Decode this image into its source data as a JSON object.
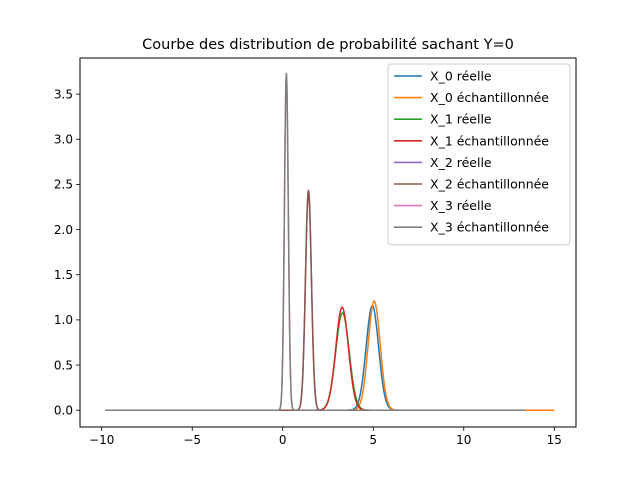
{
  "chart_data": {
    "type": "line",
    "title": "Courbe des distribution de probabilité sachant Y=0",
    "xlabel": "",
    "ylabel": "",
    "xlim": [
      -11.2,
      16.2
    ],
    "ylim": [
      -0.186,
      3.9
    ],
    "xticks": [
      -10,
      -5,
      0,
      5,
      10,
      15
    ],
    "xtick_labels": [
      "−10",
      "−5",
      "0",
      "5",
      "10",
      "15"
    ],
    "yticks": [
      0.0,
      0.5,
      1.0,
      1.5,
      2.0,
      2.5,
      3.0,
      3.5
    ],
    "ytick_labels": [
      "0.0",
      "0.5",
      "1.0",
      "1.5",
      "2.0",
      "2.5",
      "3.0",
      "3.5"
    ],
    "grid": false,
    "legend_position": "top-right",
    "series": [
      {
        "name": "X_0 réelle",
        "color": "#1f77b4",
        "kind": "gaussian",
        "mean": 4.95,
        "sd": 0.345,
        "x_range": [
          -8.6,
          13.4
        ]
      },
      {
        "name": "X_0 échantillonnée",
        "color": "#ff7f0e",
        "kind": "gaussian",
        "mean": 5.05,
        "sd": 0.33,
        "x_range": [
          -9.8,
          15.0
        ]
      },
      {
        "name": "X_1 réelle",
        "color": "#2ca02c",
        "kind": "gaussian",
        "mean": 3.3,
        "sd": 0.37,
        "x_range": [
          -8.6,
          13.4
        ]
      },
      {
        "name": "X_1 échantillonnée",
        "color": "#d62728",
        "kind": "gaussian",
        "mean": 3.28,
        "sd": 0.35,
        "x_range": [
          -9.8,
          13.4
        ]
      },
      {
        "name": "X_2 réelle",
        "color": "#9467bd",
        "kind": "gaussian",
        "mean": 1.42,
        "sd": 0.164,
        "x_range": [
          -8.6,
          13.4
        ]
      },
      {
        "name": "X_2 échantillonnée",
        "color": "#8c564b",
        "kind": "gaussian",
        "mean": 1.42,
        "sd": 0.164,
        "x_range": [
          -9.8,
          13.4
        ]
      },
      {
        "name": "X_3 réelle",
        "color": "#e377c2",
        "kind": "gaussian",
        "mean": 0.2,
        "sd": 0.107,
        "x_range": [
          -8.6,
          13.4
        ]
      },
      {
        "name": "X_3 échantillonnée",
        "color": "#7f7f7f",
        "kind": "gaussian",
        "mean": 0.2,
        "sd": 0.107,
        "x_range": [
          -9.8,
          13.4
        ]
      }
    ]
  }
}
